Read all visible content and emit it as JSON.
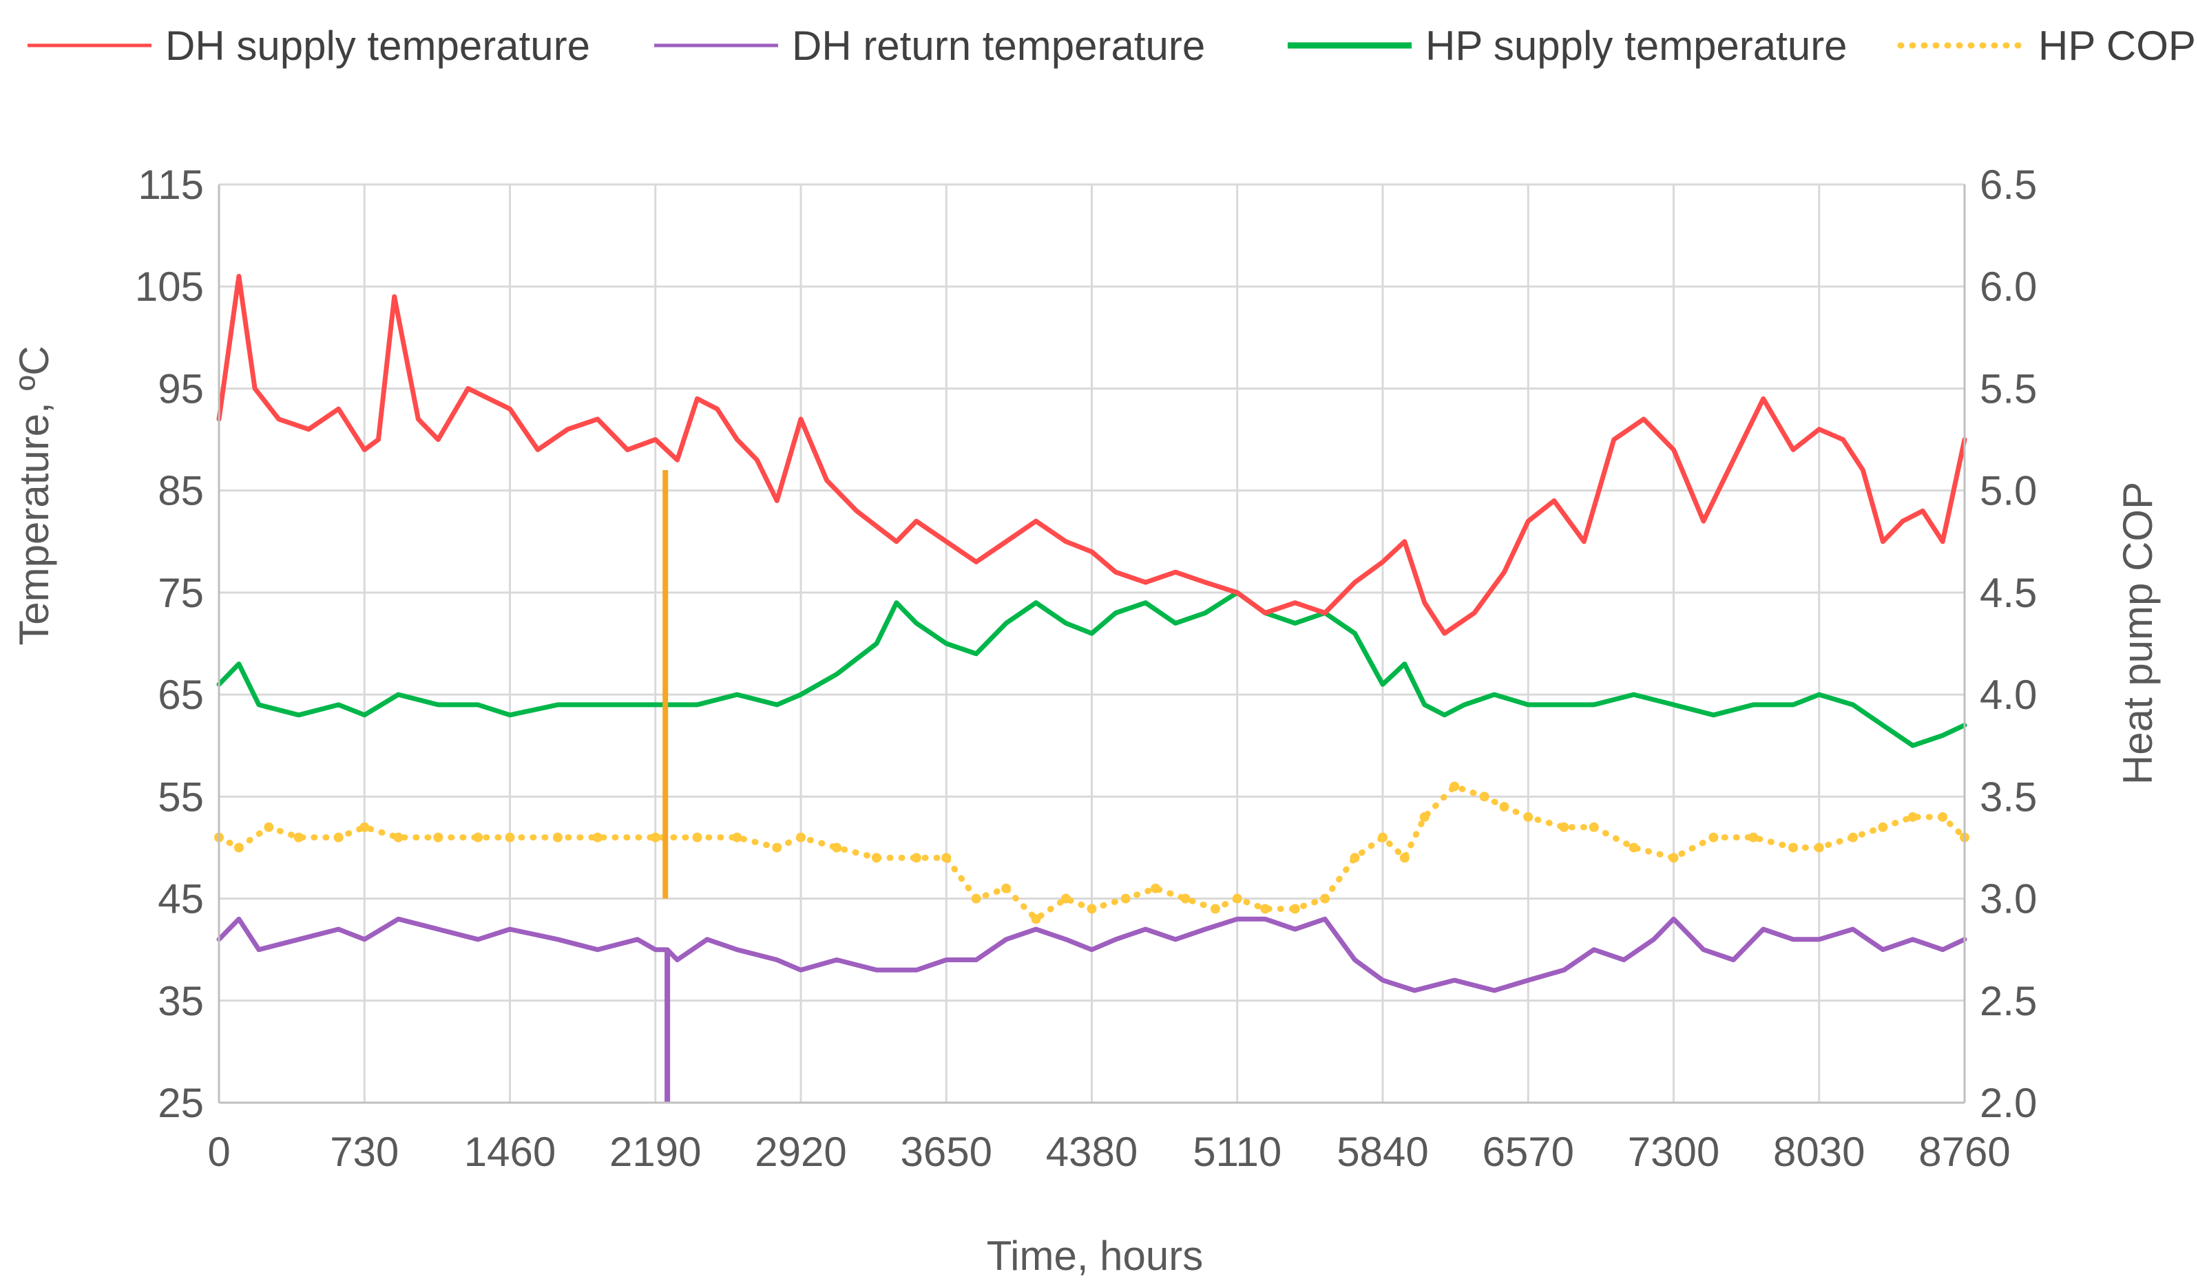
{
  "chart_data": {
    "type": "line",
    "title": "",
    "xlabel": "Time, hours",
    "ylabel_left": "Temperature, ºC",
    "ylabel_right": "Heat pump COP",
    "xlim": [
      0,
      8760
    ],
    "ylim_left": [
      25,
      115
    ],
    "ylim_right": [
      2.0,
      6.5
    ],
    "x_ticks": [
      "0",
      "730",
      "1460",
      "2190",
      "2920",
      "3650",
      "4380",
      "5110",
      "5840",
      "6570",
      "7300",
      "8030",
      "8760"
    ],
    "y_left_ticks": [
      "115",
      "105",
      "95",
      "85",
      "75",
      "65",
      "55",
      "45",
      "35",
      "25"
    ],
    "y_right_ticks": [
      "6.5",
      "6.0",
      "5.5",
      "5.0",
      "4.5",
      "4.0",
      "3.5",
      "3.0",
      "2.5",
      "2.0"
    ],
    "grid": true,
    "legend_position": "top",
    "series": [
      {
        "name": "DH supply temperature",
        "axis": "left",
        "style": "line",
        "color": "#FF4B4B",
        "x": [
          0,
          100,
          180,
          300,
          450,
          600,
          730,
          800,
          880,
          1000,
          1100,
          1250,
          1460,
          1600,
          1750,
          1900,
          2050,
          2190,
          2300,
          2400,
          2500,
          2600,
          2700,
          2800,
          2920,
          3050,
          3200,
          3400,
          3500,
          3650,
          3800,
          3950,
          4100,
          4250,
          4380,
          4500,
          4650,
          4800,
          4950,
          5110,
          5250,
          5400,
          5550,
          5700,
          5840,
          5950,
          6050,
          6150,
          6300,
          6450,
          6570,
          6700,
          6850,
          7000,
          7150,
          7300,
          7450,
          7600,
          7750,
          7900,
          8030,
          8150,
          8250,
          8350,
          8450,
          8550,
          8650,
          8760
        ],
        "values": [
          92,
          106,
          95,
          92,
          91,
          93,
          89,
          90,
          104,
          92,
          90,
          95,
          93,
          89,
          91,
          92,
          89,
          90,
          88,
          94,
          93,
          90,
          88,
          84,
          92,
          86,
          83,
          80,
          82,
          80,
          78,
          80,
          82,
          80,
          79,
          77,
          76,
          77,
          76,
          75,
          73,
          74,
          73,
          76,
          78,
          80,
          74,
          71,
          73,
          77,
          82,
          84,
          80,
          90,
          92,
          89,
          82,
          88,
          94,
          89,
          91,
          90,
          87,
          80,
          82,
          83,
          80,
          90
        ]
      },
      {
        "name": "DH return temperature",
        "axis": "left",
        "style": "line",
        "color": "#9E5FBF",
        "x": [
          0,
          100,
          200,
          400,
          600,
          730,
          900,
          1100,
          1300,
          1460,
          1700,
          1900,
          2100,
          2190,
          2250,
          2300,
          2450,
          2600,
          2800,
          2920,
          3100,
          3300,
          3500,
          3650,
          3800,
          3950,
          4100,
          4250,
          4380,
          4500,
          4650,
          4800,
          4950,
          5110,
          5250,
          5400,
          5550,
          5700,
          5840,
          6000,
          6200,
          6400,
          6570,
          6750,
          6900,
          7050,
          7200,
          7300,
          7450,
          7600,
          7750,
          7900,
          8030,
          8200,
          8350,
          8500,
          8650,
          8760
        ],
        "values": [
          41,
          43,
          40,
          41,
          42,
          41,
          43,
          42,
          41,
          42,
          41,
          40,
          41,
          40,
          40,
          39,
          41,
          40,
          39,
          38,
          39,
          38,
          38,
          39,
          39,
          41,
          42,
          41,
          40,
          41,
          42,
          41,
          42,
          43,
          43,
          42,
          43,
          39,
          37,
          36,
          37,
          36,
          37,
          38,
          40,
          39,
          41,
          43,
          40,
          39,
          42,
          41,
          41,
          42,
          40,
          41,
          40,
          41
        ]
      },
      {
        "name": "HP supply temperature",
        "axis": "left",
        "style": "line",
        "color": "#00B64A",
        "x": [
          0,
          100,
          200,
          400,
          600,
          730,
          900,
          1100,
          1300,
          1460,
          1700,
          1900,
          2190,
          2400,
          2600,
          2800,
          2920,
          3100,
          3300,
          3400,
          3500,
          3650,
          3800,
          3950,
          4100,
          4250,
          4380,
          4500,
          4650,
          4800,
          4950,
          5110,
          5250,
          5400,
          5550,
          5700,
          5840,
          5950,
          6050,
          6150,
          6250,
          6400,
          6570,
          6750,
          6900,
          7100,
          7300,
          7500,
          7700,
          7900,
          8030,
          8200,
          8350,
          8500,
          8650,
          8760
        ],
        "values": [
          66,
          68,
          64,
          63,
          64,
          63,
          65,
          64,
          64,
          63,
          64,
          64,
          64,
          64,
          65,
          64,
          65,
          67,
          70,
          74,
          72,
          70,
          69,
          72,
          74,
          72,
          71,
          73,
          74,
          72,
          73,
          75,
          73,
          72,
          73,
          71,
          66,
          68,
          64,
          63,
          64,
          65,
          64,
          64,
          64,
          65,
          64,
          63,
          64,
          64,
          65,
          64,
          62,
          60,
          61,
          62
        ]
      },
      {
        "name": "HP COP",
        "axis": "right",
        "style": "dotted",
        "color": "#FFC83D",
        "x": [
          0,
          100,
          250,
          400,
          600,
          730,
          900,
          1100,
          1300,
          1460,
          1700,
          1900,
          2190,
          2400,
          2600,
          2800,
          2920,
          3100,
          3300,
          3500,
          3650,
          3800,
          3950,
          4100,
          4250,
          4380,
          4550,
          4700,
          4850,
          5000,
          5110,
          5250,
          5400,
          5550,
          5700,
          5840,
          5950,
          6050,
          6200,
          6350,
          6450,
          6570,
          6750,
          6900,
          7100,
          7300,
          7500,
          7700,
          7900,
          8030,
          8200,
          8350,
          8500,
          8650,
          8760
        ],
        "values": [
          3.3,
          3.25,
          3.35,
          3.3,
          3.3,
          3.35,
          3.3,
          3.3,
          3.3,
          3.3,
          3.3,
          3.3,
          3.3,
          3.3,
          3.3,
          3.25,
          3.3,
          3.25,
          3.2,
          3.2,
          3.2,
          3.0,
          3.05,
          2.9,
          3.0,
          2.95,
          3.0,
          3.05,
          3.0,
          2.95,
          3.0,
          2.95,
          2.95,
          3.0,
          3.2,
          3.3,
          3.2,
          3.4,
          3.55,
          3.5,
          3.45,
          3.4,
          3.35,
          3.35,
          3.25,
          3.2,
          3.3,
          3.3,
          3.25,
          3.25,
          3.3,
          3.35,
          3.4,
          3.4,
          3.3
        ]
      }
    ],
    "annotations": [
      {
        "name": "HP COP spike",
        "x": 2240,
        "y_right_from": 3.0,
        "y_right_to": 5.1,
        "color": "#F5A623"
      },
      {
        "name": "DH return dip",
        "x": 2250,
        "y_left_from": 40,
        "y_left_to": 25,
        "color": "#9E5FBF"
      }
    ]
  }
}
